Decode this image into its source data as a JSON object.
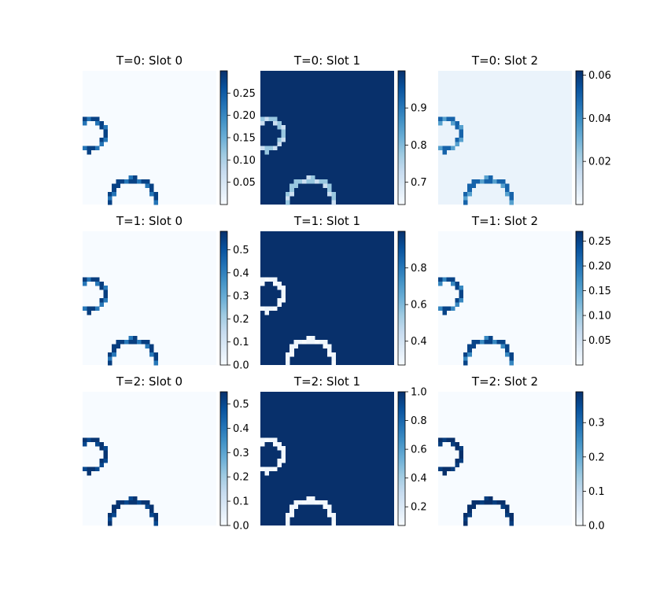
{
  "chart_data": [
    {
      "type": "heatmap",
      "title": "T=0: Slot 0",
      "colormap": "Blues",
      "vmin": 0.0,
      "vmax": 0.3,
      "colorbar_ticks": [
        0.05,
        0.1,
        0.15,
        0.2,
        0.25
      ],
      "tick_labels": [
        "0.05",
        "0.10",
        "0.15",
        "0.20",
        "0.25"
      ],
      "background_value": 0.0,
      "ring_values": [
        0.22,
        0.28
      ]
    },
    {
      "type": "heatmap",
      "title": "T=0: Slot 1",
      "colormap": "Blues",
      "vmin": 0.64,
      "vmax": 1.0,
      "colorbar_ticks": [
        0.7,
        0.8,
        0.9
      ],
      "tick_labels": [
        "0.7",
        "0.8",
        "0.9"
      ],
      "background_value": 1.0,
      "ring_values": [
        0.72,
        0.78
      ]
    },
    {
      "type": "heatmap",
      "title": "T=0: Slot 2",
      "colormap": "Blues",
      "vmin": 0.0,
      "vmax": 0.062,
      "colorbar_ticks": [
        0.02,
        0.04,
        0.06
      ],
      "tick_labels": [
        "0.02",
        "0.04",
        "0.06"
      ],
      "background_value": 0.004,
      "ring_values": [
        0.035,
        0.05
      ]
    },
    {
      "type": "heatmap",
      "title": "T=1: Slot 0",
      "colormap": "Blues",
      "vmin": 0.0,
      "vmax": 0.58,
      "colorbar_ticks": [
        0.0,
        0.1,
        0.2,
        0.3,
        0.4,
        0.5
      ],
      "tick_labels": [
        "0.0",
        "0.1",
        "0.2",
        "0.3",
        "0.4",
        "0.5"
      ],
      "background_value": 0.0,
      "ring_values": [
        0.42,
        0.55
      ]
    },
    {
      "type": "heatmap",
      "title": "T=1: Slot 1",
      "colormap": "Blues",
      "vmin": 0.27,
      "vmax": 1.0,
      "colorbar_ticks": [
        0.4,
        0.6,
        0.8
      ],
      "tick_labels": [
        "0.4",
        "0.6",
        "0.8"
      ],
      "background_value": 1.0,
      "ring_values": [
        0.27,
        0.3
      ]
    },
    {
      "type": "heatmap",
      "title": "T=1: Slot 2",
      "colormap": "Blues",
      "vmin": 0.0,
      "vmax": 0.27,
      "colorbar_ticks": [
        0.05,
        0.1,
        0.15,
        0.2,
        0.25
      ],
      "tick_labels": [
        "0.05",
        "0.10",
        "0.15",
        "0.20",
        "0.25"
      ],
      "background_value": 0.0,
      "ring_values": [
        0.18,
        0.25
      ]
    },
    {
      "type": "heatmap",
      "title": "T=2: Slot 0",
      "colormap": "Blues",
      "vmin": 0.0,
      "vmax": 0.55,
      "colorbar_ticks": [
        0.0,
        0.1,
        0.2,
        0.3,
        0.4,
        0.5
      ],
      "tick_labels": [
        "0.0",
        "0.1",
        "0.2",
        "0.3",
        "0.4",
        "0.5"
      ],
      "background_value": 0.0,
      "ring_values": [
        0.5,
        0.54
      ]
    },
    {
      "type": "heatmap",
      "title": "T=2: Slot 1",
      "colormap": "Blues",
      "vmin": 0.07,
      "vmax": 1.0,
      "colorbar_ticks": [
        0.2,
        0.4,
        0.6,
        0.8,
        1.0
      ],
      "tick_labels": [
        "0.2",
        "0.4",
        "0.6",
        "0.8",
        "1.0"
      ],
      "background_value": 1.0,
      "ring_values": [
        0.07,
        0.1
      ]
    },
    {
      "type": "heatmap",
      "title": "T=2: Slot 2",
      "colormap": "Blues",
      "vmin": 0.0,
      "vmax": 0.39,
      "colorbar_ticks": [
        0.0,
        0.1,
        0.2,
        0.3
      ],
      "tick_labels": [
        "0.0",
        "0.1",
        "0.2",
        "0.3"
      ],
      "background_value": 0.0,
      "ring_values": [
        0.37,
        0.39
      ]
    }
  ]
}
